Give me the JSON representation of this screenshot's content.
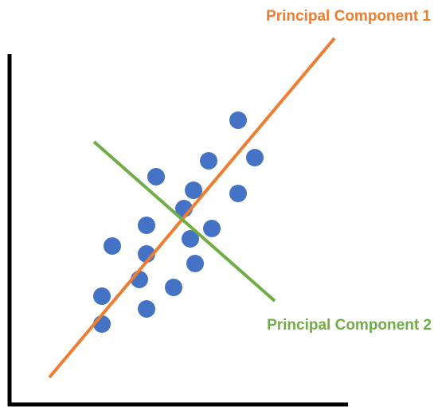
{
  "labels": {
    "component_1": "Principal Component 1",
    "component_2": "Principal Component 2"
  }
}
